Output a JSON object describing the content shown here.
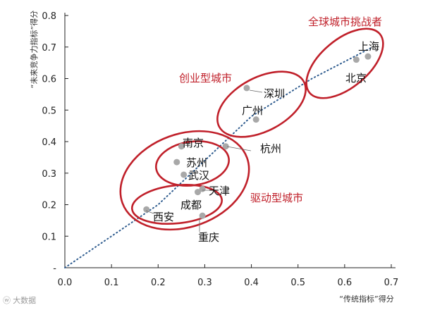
{
  "chart_data": {
    "type": "scatter",
    "title": "",
    "xlabel": "“传统指标”得分",
    "ylabel": "“未来竞争力指标”得分",
    "xlim": [
      0,
      0.7
    ],
    "ylim": [
      0,
      0.8
    ],
    "x_ticks": [
      "0.0",
      "0.1",
      "0.2",
      "0.3",
      "0.4",
      "0.5",
      "0.6",
      "0.7"
    ],
    "y_ticks": [
      "-",
      "0.1",
      "0.2",
      "0.3",
      "0.4",
      "0.5",
      "0.6",
      "0.7",
      "0.8"
    ],
    "grid": false,
    "points": [
      {
        "label": "上海",
        "x": 0.65,
        "y": 0.67
      },
      {
        "label": "北京",
        "x": 0.625,
        "y": 0.66
      },
      {
        "label": "深圳",
        "x": 0.39,
        "y": 0.57
      },
      {
        "label": "广州",
        "x": 0.41,
        "y": 0.47
      },
      {
        "label": "杭州",
        "x": 0.345,
        "y": 0.385
      },
      {
        "label": "南京",
        "x": 0.25,
        "y": 0.385
      },
      {
        "label": "苏州",
        "x": 0.24,
        "y": 0.335
      },
      {
        "label": "武汉",
        "x": 0.255,
        "y": 0.295
      },
      {
        "label": "天津",
        "x": 0.295,
        "y": 0.25
      },
      {
        "label": "成都",
        "x": 0.285,
        "y": 0.24
      },
      {
        "label": "西安",
        "x": 0.175,
        "y": 0.185
      },
      {
        "label": "重庆",
        "x": 0.295,
        "y": 0.165
      }
    ],
    "trend_line": {
      "style": "dotted",
      "points": [
        [
          0.0,
          0.0
        ],
        [
          0.2,
          0.2
        ],
        [
          0.4,
          0.48
        ],
        [
          0.53,
          0.6
        ],
        [
          0.66,
          0.7
        ]
      ]
    },
    "groups": [
      {
        "label": "全球城市挑战者"
      },
      {
        "label": "创业型城市"
      },
      {
        "label": "驱动型城市"
      }
    ],
    "colors": {
      "point": "#a8a8a8",
      "trend": "#2f5c8f",
      "ellipse": "#c0202a",
      "axis": "#222222",
      "label": "#111111"
    }
  },
  "watermark": {
    "icon": "weibo-icon",
    "text": "大数据"
  }
}
